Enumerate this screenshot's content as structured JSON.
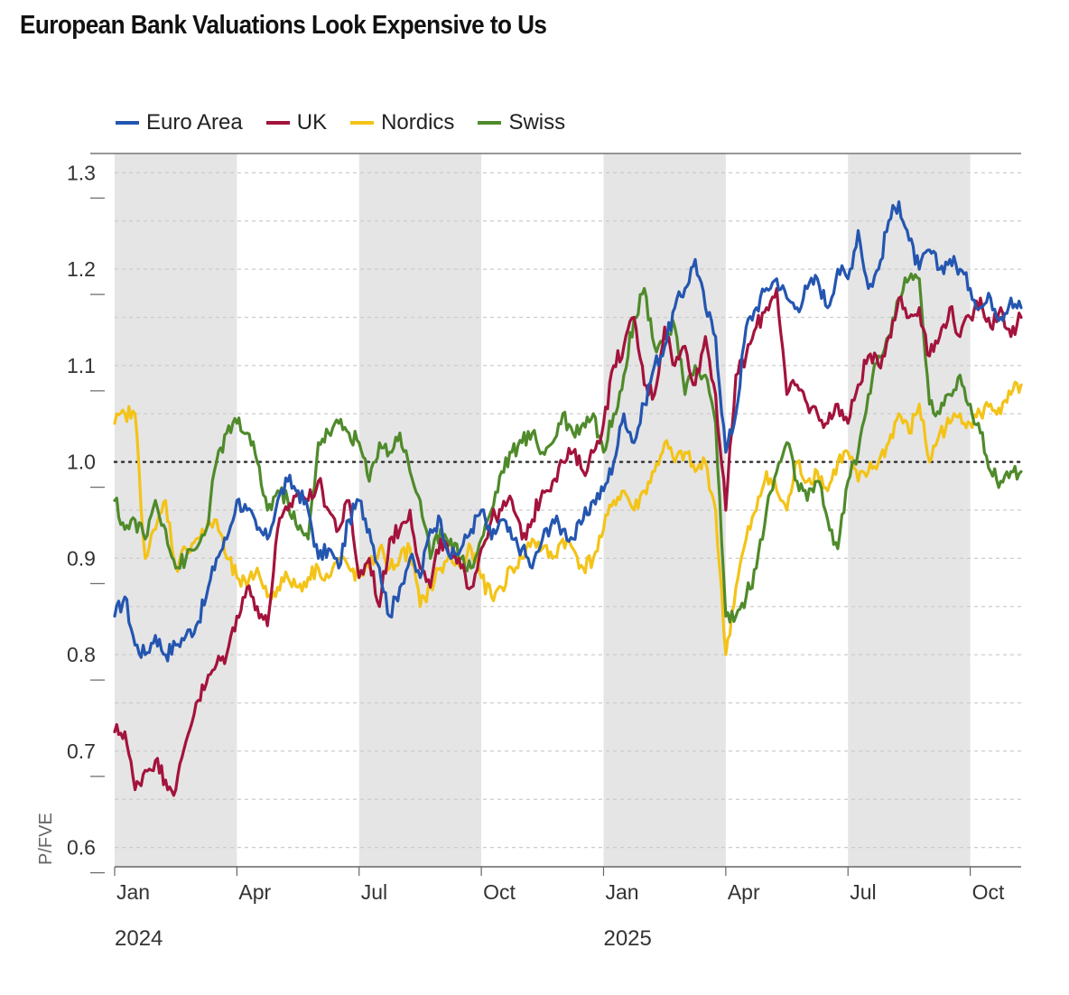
{
  "title": "European Bank Valuations Look Expensive to Us",
  "colors": {
    "euro": "#2456b0",
    "uk": "#a3133c",
    "nordics": "#f3c318",
    "swiss": "#4f8a2b",
    "shade": "#e5e5e5",
    "grid": "#cccccc",
    "reference": "#333333"
  },
  "chart_data": {
    "type": "line",
    "title": "European Bank Valuations Look Expensive to Us",
    "ylabel": "P/FVE",
    "xlabel": "",
    "ylim": [
      0.58,
      1.32
    ],
    "yticks": [
      0.6,
      0.7,
      0.8,
      0.9,
      1.0,
      1.1,
      1.2,
      1.3
    ],
    "ytick_labels": [
      "0.6",
      "0.7",
      "0.8",
      "0.9",
      "1.0",
      "1.1",
      "1.2",
      "1.3"
    ],
    "xlim": [
      0,
      22.25
    ],
    "xticks": [
      0,
      3,
      6,
      9,
      12,
      15,
      18,
      21
    ],
    "xtick_labels": [
      "Jan",
      "Apr",
      "Jul",
      "Oct",
      "Jan",
      "Apr",
      "Jul",
      "Oct"
    ],
    "year_labels": [
      {
        "x": 0,
        "label": "2024"
      },
      {
        "x": 12,
        "label": "2025"
      }
    ],
    "reference_line": 1.0,
    "shaded_quarters": [
      [
        0,
        3
      ],
      [
        6,
        9
      ],
      [
        12,
        15
      ],
      [
        18,
        21
      ]
    ],
    "legend_position": "top-left",
    "series": [
      {
        "name": "Euro Area",
        "x": [
          0,
          0.25,
          0.5,
          0.75,
          1.0,
          1.25,
          1.5,
          1.75,
          2.0,
          2.25,
          2.5,
          2.75,
          3.0,
          3.25,
          3.5,
          3.75,
          4.0,
          4.25,
          4.5,
          4.75,
          5.0,
          5.25,
          5.5,
          5.75,
          6.0,
          6.25,
          6.5,
          6.75,
          7.0,
          7.25,
          7.5,
          7.75,
          8.0,
          8.25,
          8.5,
          8.75,
          9.0,
          9.25,
          9.5,
          9.75,
          10.0,
          10.25,
          10.5,
          10.75,
          11.0,
          11.25,
          11.5,
          11.75,
          12.0,
          12.25,
          12.5,
          12.75,
          13.0,
          13.25,
          13.5,
          13.75,
          14.0,
          14.25,
          14.5,
          14.75,
          15.0,
          15.25,
          15.5,
          15.75,
          16.0,
          16.25,
          16.5,
          16.75,
          17.0,
          17.25,
          17.5,
          17.75,
          18.0,
          18.25,
          18.5,
          18.75,
          19.0,
          19.25,
          19.5,
          19.75,
          20.0,
          20.25,
          20.5,
          20.75,
          21.0,
          21.25,
          21.5,
          21.75,
          22.0,
          22.25
        ],
        "values": [
          0.84,
          0.86,
          0.81,
          0.8,
          0.82,
          0.8,
          0.81,
          0.82,
          0.83,
          0.86,
          0.9,
          0.92,
          0.96,
          0.95,
          0.93,
          0.92,
          0.96,
          0.98,
          0.97,
          0.95,
          0.9,
          0.91,
          0.89,
          0.94,
          0.96,
          0.93,
          0.89,
          0.84,
          0.87,
          0.9,
          0.88,
          0.93,
          0.94,
          0.9,
          0.91,
          0.93,
          0.95,
          0.92,
          0.94,
          0.92,
          0.91,
          0.89,
          0.92,
          0.94,
          0.93,
          0.92,
          0.94,
          0.96,
          0.97,
          1.0,
          1.05,
          1.02,
          1.06,
          1.1,
          1.12,
          1.16,
          1.18,
          1.21,
          1.16,
          1.13,
          1.01,
          1.05,
          1.14,
          1.16,
          1.18,
          1.19,
          1.17,
          1.16,
          1.18,
          1.19,
          1.16,
          1.2,
          1.19,
          1.24,
          1.18,
          1.2,
          1.25,
          1.27,
          1.23,
          1.2,
          1.22,
          1.2,
          1.21,
          1.2,
          1.18,
          1.16,
          1.17,
          1.15,
          1.17,
          1.16
        ]
      },
      {
        "name": "UK",
        "x": [
          0,
          0.25,
          0.5,
          0.75,
          1.0,
          1.25,
          1.5,
          1.75,
          2.0,
          2.25,
          2.5,
          2.75,
          3.0,
          3.25,
          3.5,
          3.75,
          4.0,
          4.25,
          4.5,
          4.75,
          5.0,
          5.25,
          5.5,
          5.75,
          6.0,
          6.25,
          6.5,
          6.75,
          7.0,
          7.25,
          7.5,
          7.75,
          8.0,
          8.25,
          8.5,
          8.75,
          9.0,
          9.25,
          9.5,
          9.75,
          10.0,
          10.25,
          10.5,
          10.75,
          11.0,
          11.25,
          11.5,
          11.75,
          12.0,
          12.25,
          12.5,
          12.75,
          13.0,
          13.25,
          13.5,
          13.75,
          14.0,
          14.25,
          14.5,
          14.75,
          15.0,
          15.25,
          15.5,
          15.75,
          16.0,
          16.25,
          16.5,
          16.75,
          17.0,
          17.25,
          17.5,
          17.75,
          18.0,
          18.25,
          18.5,
          18.75,
          19.0,
          19.25,
          19.5,
          19.75,
          20.0,
          20.25,
          20.5,
          20.75,
          21.0,
          21.25,
          21.5,
          21.75,
          22.0,
          22.25
        ],
        "values": [
          0.72,
          0.72,
          0.66,
          0.68,
          0.69,
          0.67,
          0.66,
          0.71,
          0.75,
          0.77,
          0.79,
          0.8,
          0.84,
          0.87,
          0.85,
          0.83,
          0.93,
          0.95,
          0.97,
          0.96,
          0.98,
          0.95,
          0.93,
          0.96,
          0.88,
          0.9,
          0.85,
          0.92,
          0.93,
          0.95,
          0.89,
          0.87,
          0.92,
          0.9,
          0.89,
          0.87,
          0.91,
          0.94,
          0.95,
          0.96,
          0.92,
          0.94,
          0.97,
          0.98,
          1.0,
          1.01,
          0.99,
          1.01,
          1.04,
          1.1,
          1.12,
          1.15,
          1.08,
          1.07,
          1.14,
          1.1,
          1.12,
          1.08,
          1.13,
          1.07,
          0.95,
          1.09,
          1.11,
          1.14,
          1.16,
          1.18,
          1.07,
          1.08,
          1.06,
          1.05,
          1.04,
          1.06,
          1.04,
          1.08,
          1.11,
          1.1,
          1.13,
          1.17,
          1.15,
          1.16,
          1.11,
          1.13,
          1.16,
          1.13,
          1.15,
          1.17,
          1.14,
          1.16,
          1.13,
          1.15
        ]
      },
      {
        "name": "Nordics",
        "x": [
          0,
          0.25,
          0.5,
          0.75,
          1.0,
          1.25,
          1.5,
          1.75,
          2.0,
          2.25,
          2.5,
          2.75,
          3.0,
          3.25,
          3.5,
          3.75,
          4.0,
          4.25,
          4.5,
          4.75,
          5.0,
          5.25,
          5.5,
          5.75,
          6.0,
          6.25,
          6.5,
          6.75,
          7.0,
          7.25,
          7.5,
          7.75,
          8.0,
          8.25,
          8.5,
          8.75,
          9.0,
          9.25,
          9.5,
          9.75,
          10.0,
          10.25,
          10.5,
          10.75,
          11.0,
          11.25,
          11.5,
          11.75,
          12.0,
          12.25,
          12.5,
          12.75,
          13.0,
          13.25,
          13.5,
          13.75,
          14.0,
          14.25,
          14.5,
          14.75,
          15.0,
          15.25,
          15.5,
          15.75,
          16.0,
          16.25,
          16.5,
          16.75,
          17.0,
          17.25,
          17.5,
          17.75,
          18.0,
          18.25,
          18.5,
          18.75,
          19.0,
          19.25,
          19.5,
          19.75,
          20.0,
          20.25,
          20.5,
          20.75,
          21.0,
          21.25,
          21.5,
          21.75,
          22.0,
          22.25
        ],
        "values": [
          1.04,
          1.05,
          1.05,
          0.9,
          0.93,
          0.96,
          0.89,
          0.91,
          0.92,
          0.93,
          0.94,
          0.9,
          0.88,
          0.87,
          0.89,
          0.86,
          0.87,
          0.88,
          0.87,
          0.88,
          0.89,
          0.88,
          0.9,
          0.89,
          0.88,
          0.89,
          0.91,
          0.89,
          0.9,
          0.91,
          0.85,
          0.87,
          0.89,
          0.9,
          0.89,
          0.91,
          0.88,
          0.86,
          0.87,
          0.89,
          0.9,
          0.92,
          0.91,
          0.9,
          0.92,
          0.91,
          0.89,
          0.9,
          0.93,
          0.96,
          0.97,
          0.95,
          0.97,
          0.99,
          1.02,
          1.0,
          1.01,
          0.99,
          1.0,
          0.95,
          0.8,
          0.87,
          0.92,
          0.95,
          0.99,
          0.97,
          0.95,
          1.0,
          0.98,
          0.99,
          0.97,
          1.0,
          1.01,
          0.98,
          0.99,
          1.0,
          1.02,
          1.05,
          1.03,
          1.06,
          1.0,
          1.03,
          1.04,
          1.05,
          1.04,
          1.05,
          1.06,
          1.05,
          1.07,
          1.08
        ]
      },
      {
        "name": "Swiss",
        "x": [
          0,
          0.25,
          0.5,
          0.75,
          1.0,
          1.25,
          1.5,
          1.75,
          2.0,
          2.25,
          2.5,
          2.75,
          3.0,
          3.25,
          3.5,
          3.75,
          4.0,
          4.25,
          4.5,
          4.75,
          5.0,
          5.25,
          5.5,
          5.75,
          6.0,
          6.25,
          6.5,
          6.75,
          7.0,
          7.25,
          7.5,
          7.75,
          8.0,
          8.25,
          8.5,
          8.75,
          9.0,
          9.25,
          9.5,
          9.75,
          10.0,
          10.25,
          10.5,
          10.75,
          11.0,
          11.25,
          11.5,
          11.75,
          12.0,
          12.25,
          12.5,
          12.75,
          13.0,
          13.25,
          13.5,
          13.75,
          14.0,
          14.25,
          14.5,
          14.75,
          15.0,
          15.25,
          15.5,
          15.75,
          16.0,
          16.25,
          16.5,
          16.75,
          17.0,
          17.25,
          17.5,
          17.75,
          18.0,
          18.25,
          18.5,
          18.75,
          19.0,
          19.25,
          19.5,
          19.75,
          20.0,
          20.25,
          20.5,
          20.75,
          21.0,
          21.25,
          21.5,
          21.75,
          22.0,
          22.25
        ],
        "values": [
          0.96,
          0.93,
          0.94,
          0.92,
          0.96,
          0.93,
          0.89,
          0.9,
          0.91,
          0.93,
          1.0,
          1.03,
          1.04,
          1.03,
          1.0,
          0.95,
          0.97,
          0.96,
          0.93,
          0.92,
          1.02,
          1.03,
          1.04,
          1.03,
          1.02,
          0.98,
          1.02,
          1.01,
          1.03,
          0.99,
          0.96,
          0.9,
          0.93,
          0.92,
          0.9,
          0.89,
          0.92,
          0.95,
          0.99,
          1.01,
          1.02,
          1.03,
          1.01,
          1.02,
          1.05,
          1.03,
          1.04,
          1.05,
          1.01,
          1.05,
          1.09,
          1.15,
          1.18,
          1.12,
          1.13,
          1.14,
          1.07,
          1.1,
          1.09,
          1.04,
          0.84,
          0.84,
          0.86,
          0.89,
          0.95,
          0.99,
          1.02,
          0.98,
          0.96,
          0.98,
          0.94,
          0.91,
          0.98,
          1.01,
          1.07,
          1.11,
          1.13,
          1.17,
          1.19,
          1.19,
          1.06,
          1.05,
          1.07,
          1.09,
          1.06,
          1.03,
          0.99,
          0.98,
          0.99,
          0.99
        ]
      }
    ]
  }
}
